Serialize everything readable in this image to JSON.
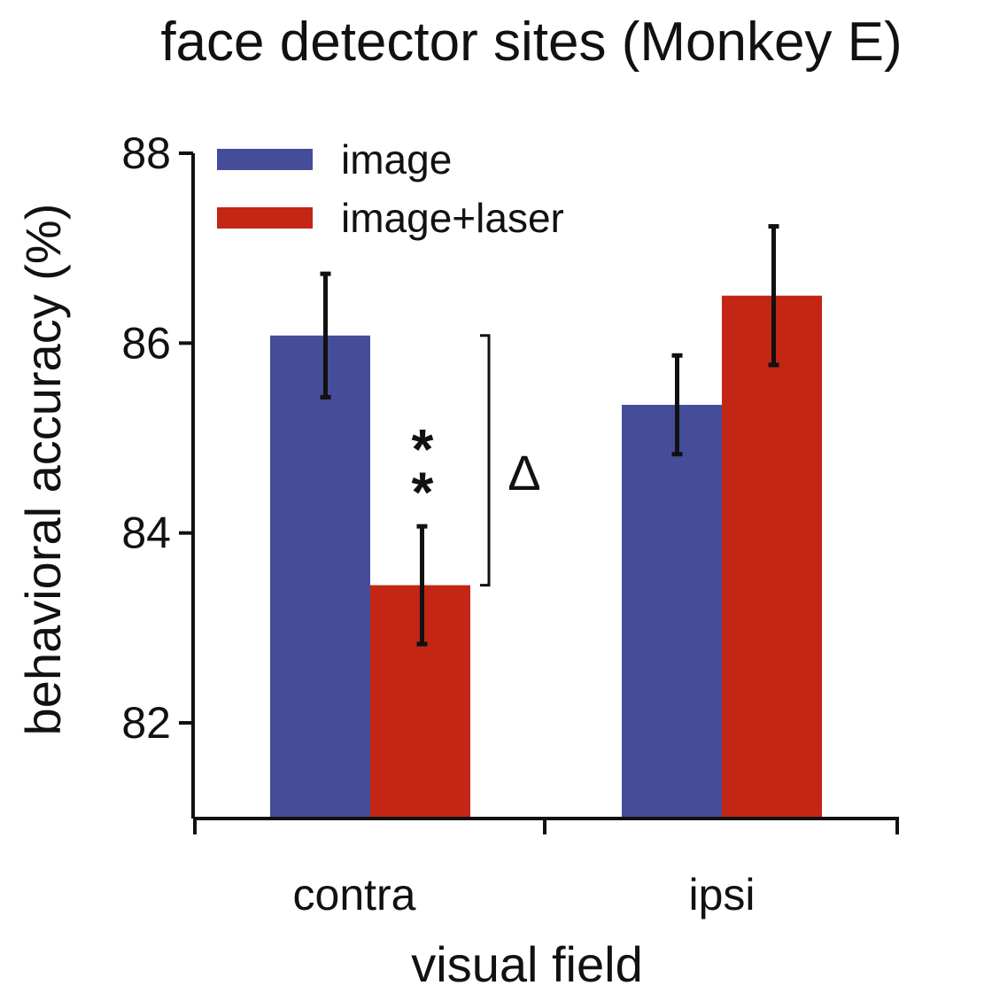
{
  "chart_data": {
    "type": "bar",
    "title": "face detector sites (Monkey E)",
    "xlabel": "visual field",
    "ylabel": "behavioral accuracy (%)",
    "categories": [
      "contra",
      "ipsi"
    ],
    "ylim": [
      81,
      88
    ],
    "yticks": [
      "82",
      "84",
      "86",
      "88"
    ],
    "grid": false,
    "legend_position": "top-left",
    "series": [
      {
        "name": "image",
        "color": "#454c9a",
        "values": [
          86.08,
          85.35
        ],
        "error": [
          0.65,
          0.52
        ]
      },
      {
        "name": "image+laser",
        "color": "#c32615",
        "values": [
          83.45,
          86.5
        ],
        "error": [
          0.62,
          0.73
        ]
      }
    ],
    "annotations": [
      {
        "text": "*",
        "category": "contra",
        "y": 84.6
      },
      {
        "text": "*",
        "category": "contra",
        "y": 85.05
      },
      {
        "text": "Δ",
        "category": "contra",
        "y": 84.6
      }
    ],
    "bracket": {
      "category": "contra",
      "y_top": 86.08,
      "y_bottom": 83.45
    }
  }
}
